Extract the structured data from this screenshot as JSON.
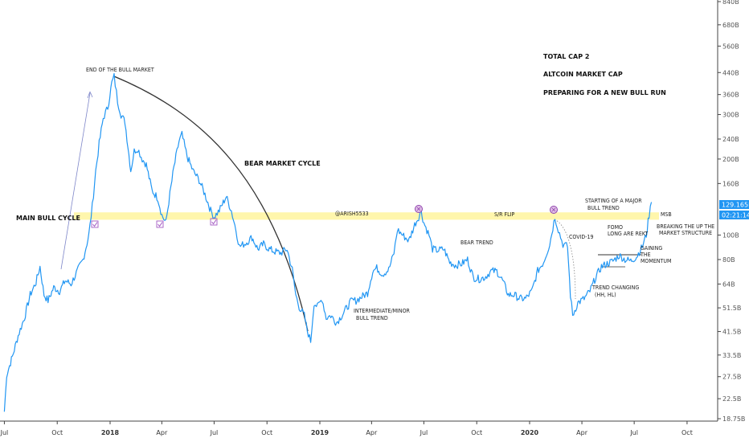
{
  "chart_data": {
    "type": "line",
    "title_lines": [
      "TOTAL CAP 2",
      "ALTCOIN MARKET CAP",
      "PREPARING FOR A NEW BULL RUN"
    ],
    "y_scale": "log",
    "y_ticks": [
      "840B",
      "680B",
      "560B",
      "440B",
      "360B",
      "300B",
      "240B",
      "200B",
      "160B",
      "100B",
      "80B",
      "64B",
      "51.5B",
      "41.5B",
      "33.5B",
      "27.5B",
      "22.5B",
      "18.75B"
    ],
    "x_ticks": [
      {
        "label": "Jul",
        "major": false
      },
      {
        "label": "Oct",
        "major": false
      },
      {
        "label": "2018",
        "major": true
      },
      {
        "label": "Apr",
        "major": false
      },
      {
        "label": "Jul",
        "major": false
      },
      {
        "label": "Oct",
        "major": false
      },
      {
        "label": "2019",
        "major": true
      },
      {
        "label": "Apr",
        "major": false
      },
      {
        "label": "Jul",
        "major": false
      },
      {
        "label": "Oct",
        "major": false
      },
      {
        "label": "2020",
        "major": true
      },
      {
        "label": "Apr",
        "major": false
      },
      {
        "label": "Jul",
        "major": false
      },
      {
        "label": "Oct",
        "major": false
      }
    ],
    "series": [
      {
        "color": "#2196f3",
        "points": [
          [
            "2017-07-01",
            20
          ],
          [
            "2017-07-05",
            28
          ],
          [
            "2017-07-15",
            33
          ],
          [
            "2017-07-25",
            40
          ],
          [
            "2017-08-05",
            47
          ],
          [
            "2017-08-15",
            58
          ],
          [
            "2017-08-25",
            65
          ],
          [
            "2017-09-01",
            75
          ],
          [
            "2017-09-08",
            58
          ],
          [
            "2017-09-15",
            55
          ],
          [
            "2017-09-25",
            62
          ],
          [
            "2017-10-05",
            60
          ],
          [
            "2017-10-15",
            66
          ],
          [
            "2017-10-25",
            64
          ],
          [
            "2017-11-05",
            72
          ],
          [
            "2017-11-15",
            80
          ],
          [
            "2017-11-25",
            100
          ],
          [
            "2017-12-01",
            130
          ],
          [
            "2017-12-07",
            180
          ],
          [
            "2017-12-13",
            230
          ],
          [
            "2017-12-20",
            290
          ],
          [
            "2017-12-28",
            320
          ],
          [
            "2018-01-04",
            400
          ],
          [
            "2018-01-08",
            425
          ],
          [
            "2018-01-14",
            340
          ],
          [
            "2018-01-20",
            300
          ],
          [
            "2018-01-27",
            280
          ],
          [
            "2018-02-06",
            180
          ],
          [
            "2018-02-12",
            215
          ],
          [
            "2018-02-18",
            220
          ],
          [
            "2018-02-26",
            200
          ],
          [
            "2018-03-05",
            190
          ],
          [
            "2018-03-15",
            150
          ],
          [
            "2018-03-25",
            140
          ],
          [
            "2018-04-01",
            120
          ],
          [
            "2018-04-08",
            112
          ],
          [
            "2018-04-15",
            145
          ],
          [
            "2018-04-22",
            185
          ],
          [
            "2018-05-01",
            235
          ],
          [
            "2018-05-06",
            250
          ],
          [
            "2018-05-15",
            205
          ],
          [
            "2018-05-25",
            180
          ],
          [
            "2018-06-05",
            165
          ],
          [
            "2018-06-15",
            145
          ],
          [
            "2018-06-25",
            125
          ],
          [
            "2018-07-01",
            118
          ],
          [
            "2018-07-10",
            125
          ],
          [
            "2018-07-22",
            142
          ],
          [
            "2018-07-31",
            125
          ],
          [
            "2018-08-08",
            105
          ],
          [
            "2018-08-14",
            90
          ],
          [
            "2018-08-25",
            93
          ],
          [
            "2018-09-05",
            98
          ],
          [
            "2018-09-15",
            88
          ],
          [
            "2018-09-25",
            92
          ],
          [
            "2018-10-05",
            88
          ],
          [
            "2018-10-15",
            86
          ],
          [
            "2018-10-25",
            85
          ],
          [
            "2018-11-05",
            88
          ],
          [
            "2018-11-14",
            73
          ],
          [
            "2018-11-20",
            58
          ],
          [
            "2018-11-26",
            52
          ],
          [
            "2018-12-05",
            48
          ],
          [
            "2018-12-10",
            42
          ],
          [
            "2018-12-16",
            38
          ],
          [
            "2018-12-22",
            54
          ],
          [
            "2018-12-28",
            52
          ],
          [
            "2019-01-05",
            56
          ],
          [
            "2019-01-12",
            47
          ],
          [
            "2019-01-20",
            48
          ],
          [
            "2019-01-30",
            45
          ],
          [
            "2019-02-08",
            48
          ],
          [
            "2019-02-18",
            52
          ],
          [
            "2019-02-25",
            55
          ],
          [
            "2019-03-05",
            55
          ],
          [
            "2019-03-15",
            57
          ],
          [
            "2019-03-25",
            59
          ],
          [
            "2019-04-03",
            72
          ],
          [
            "2019-04-10",
            74
          ],
          [
            "2019-04-20",
            70
          ],
          [
            "2019-05-01",
            73
          ],
          [
            "2019-05-10",
            85
          ],
          [
            "2019-05-16",
            105
          ],
          [
            "2019-05-25",
            100
          ],
          [
            "2019-06-05",
            95
          ],
          [
            "2019-06-15",
            110
          ],
          [
            "2019-06-22",
            118
          ],
          [
            "2019-06-26",
            125
          ],
          [
            "2019-07-01",
            112
          ],
          [
            "2019-07-10",
            100
          ],
          [
            "2019-07-16",
            88
          ],
          [
            "2019-07-25",
            87
          ],
          [
            "2019-08-05",
            88
          ],
          [
            "2019-08-15",
            78
          ],
          [
            "2019-08-25",
            76
          ],
          [
            "2019-09-05",
            77
          ],
          [
            "2019-09-15",
            80
          ],
          [
            "2019-09-25",
            68
          ],
          [
            "2019-10-05",
            67
          ],
          [
            "2019-10-15",
            68
          ],
          [
            "2019-10-26",
            72
          ],
          [
            "2019-11-05",
            72
          ],
          [
            "2019-11-15",
            66
          ],
          [
            "2019-11-25",
            58
          ],
          [
            "2019-12-05",
            58
          ],
          [
            "2019-12-15",
            56
          ],
          [
            "2019-12-25",
            56
          ],
          [
            "2020-01-05",
            60
          ],
          [
            "2020-01-15",
            72
          ],
          [
            "2020-01-25",
            78
          ],
          [
            "2020-02-05",
            92
          ],
          [
            "2020-02-14",
            118
          ],
          [
            "2020-02-20",
            105
          ],
          [
            "2020-02-28",
            92
          ],
          [
            "2020-03-07",
            90
          ],
          [
            "2020-03-12",
            58
          ],
          [
            "2020-03-16",
            48
          ],
          [
            "2020-03-25",
            54
          ],
          [
            "2020-04-05",
            56
          ],
          [
            "2020-04-15",
            60
          ],
          [
            "2020-04-25",
            68
          ],
          [
            "2020-05-05",
            75
          ],
          [
            "2020-05-15",
            77
          ],
          [
            "2020-05-25",
            79
          ],
          [
            "2020-06-05",
            83
          ],
          [
            "2020-06-15",
            80
          ],
          [
            "2020-06-25",
            79
          ],
          [
            "2020-07-05",
            82
          ],
          [
            "2020-07-15",
            90
          ],
          [
            "2020-07-22",
            100
          ],
          [
            "2020-07-27",
            120
          ],
          [
            "2020-07-31",
            135
          ]
        ]
      }
    ],
    "price_label": "129.165B",
    "countdown_label": "02:21:14",
    "sr_zone": {
      "low": 115,
      "high": 123
    },
    "annotations": {
      "end_of_bull": "END OF THE BULL MARKET",
      "bear_cycle": "BEAR MARKET CYCLE",
      "main_bull": "MAIN BULL CYCLE",
      "author": "@ARISH5533",
      "sr_flip": "S/R FLIP",
      "msb": "MSB",
      "intermediate_line1": "INTERMEDIATE/MINOR",
      "intermediate_line2": "BULL TREND",
      "bear_trend": "BEAR TREND",
      "covid": "COVID-19",
      "starting_line1": "STARTING OF A MAJOR",
      "starting_line2": "BULL TREND",
      "fomo_line1": "FOMO",
      "fomo_line2": "LONG ARE REKT",
      "breaking_line1": "BREAKING THE UP THE",
      "breaking_line2": "MARKET STRUCTURE",
      "gaining_line1": "GAINING",
      "gaining_line2": "THE",
      "gaining_line3": "MOMENTUM",
      "trend_line1": "TREND CHANGING",
      "trend_line2": "(HH, HL)"
    }
  }
}
